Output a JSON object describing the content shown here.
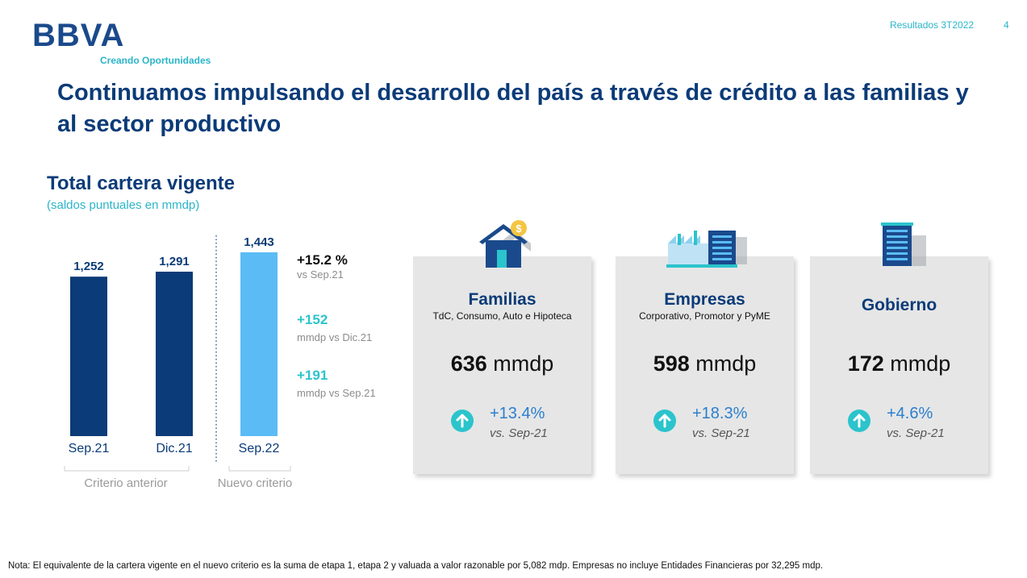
{
  "header": {
    "logo": "BBVA",
    "tagline": "Creando Oportunidades",
    "report": "Resultados 3T2022",
    "page": "4"
  },
  "title": "Continuamos impulsando el desarrollo del país a través de crédito a las familias y al sector productivo",
  "chart": {
    "title": "Total cartera vigente",
    "subtitle": "(saldos puntuales en mmdp)",
    "groups": [
      "Criterio anterior",
      "Nuevo criterio"
    ]
  },
  "chart_data": {
    "type": "bar",
    "categories": [
      "Sep.21",
      "Dic.21",
      "Sep.22"
    ],
    "values": [
      1252,
      1291,
      1443
    ],
    "value_labels": [
      "1,252",
      "1,291",
      "1,443"
    ],
    "colors": [
      "#0b3b78",
      "#0b3b78",
      "#5bbcf5"
    ],
    "ylim": [
      0,
      1443
    ]
  },
  "stats": [
    {
      "value": "+15.2 %",
      "label": "vs Sep.21",
      "color": "#111111"
    },
    {
      "value": "+152",
      "label": "mmdp vs Dic.21",
      "color": "#2bc4cc"
    },
    {
      "value": "+191",
      "label": "mmdp vs Sep.21",
      "color": "#2bc4cc"
    }
  ],
  "cards": [
    {
      "title": "Familias",
      "subtitle": "TdC, Consumo, Auto e Hipoteca",
      "amount": "636",
      "unit": "mmdp",
      "growth": "+13.4%",
      "vs": "vs. Sep-21",
      "icon": "house-icon"
    },
    {
      "title": "Empresas",
      "subtitle": "Corporativo, Promotor y PyME",
      "amount": "598",
      "unit": "mmdp",
      "growth": "+18.3%",
      "vs": "vs. Sep-21",
      "icon": "factory-icon"
    },
    {
      "title": "Gobierno",
      "subtitle": "",
      "amount": "172",
      "unit": "mmdp",
      "growth": "+4.6%",
      "vs": "vs. Sep-21",
      "icon": "government-building-icon"
    }
  ],
  "footnote": "Nota: El equivalente de la cartera vigente en el nuevo criterio es la suma de etapa 1, etapa 2 y valuada a valor razonable por 5,082 mdp.  Empresas no incluye Entidades Financieras por 32,295 mdp."
}
